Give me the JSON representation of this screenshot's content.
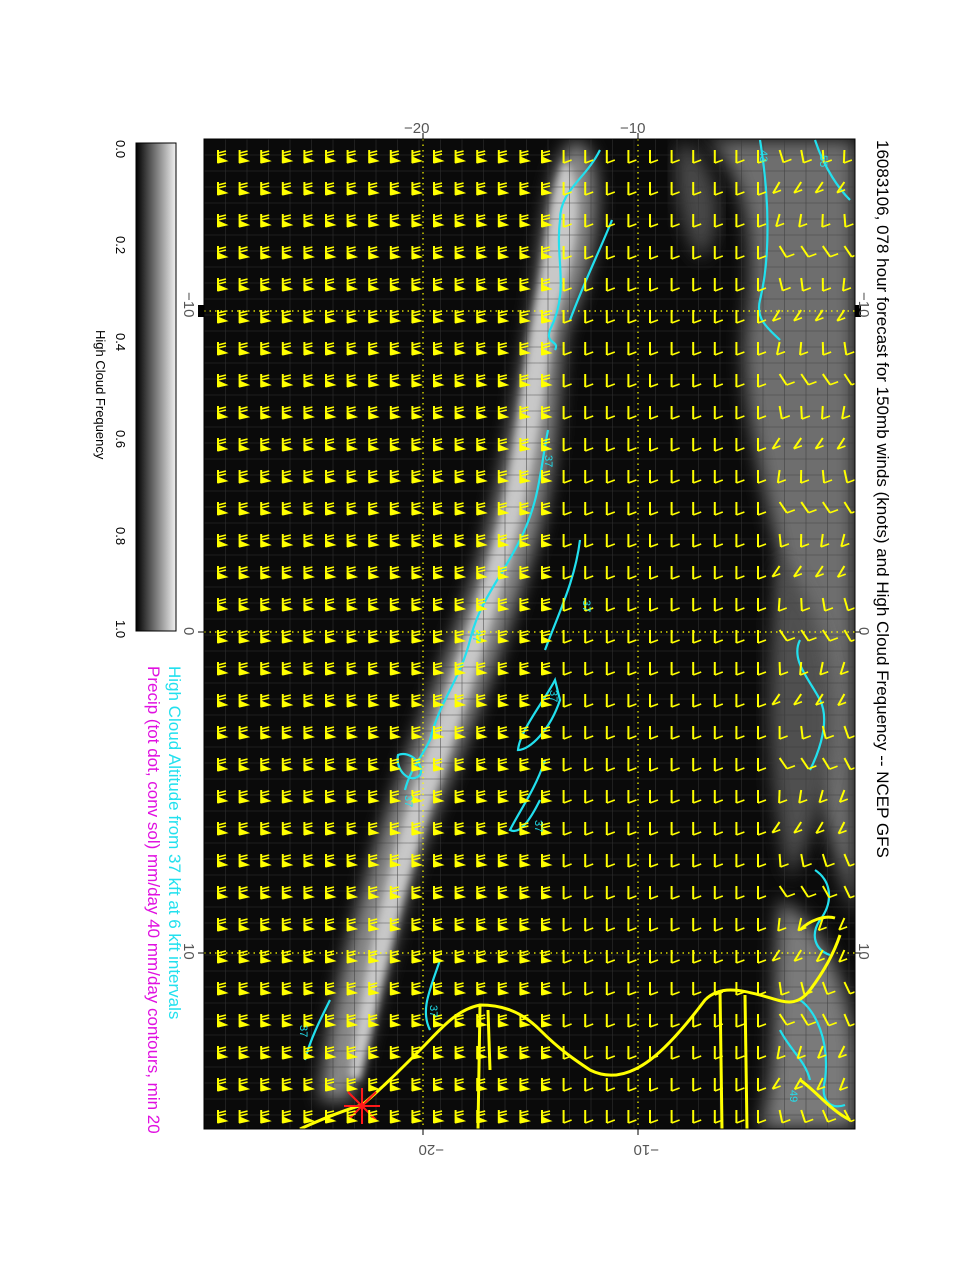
{
  "title": "16083106, 078 hour forecast for 150mb winds (knots) and High Cloud Frequency -- NCEP GFS",
  "caption_line1": "High Cloud Altitude from 37 kft at 6 kft intervals",
  "caption_line2": "Precip (tot dot, conv sol) mm/day 40 mm/day contours, min 20",
  "colorbar": {
    "label": "High Cloud Frequency",
    "ticks": [
      "0.0",
      "0.2",
      "0.4",
      "0.6",
      "0.8",
      "1.0"
    ]
  },
  "axes": {
    "top_ticks": [
      "−20",
      "−10"
    ],
    "bottom_ticks": [
      "−20",
      "−10"
    ],
    "left_ticks": [
      "−10",
      "0",
      "10"
    ],
    "right_ticks": [
      "−10",
      "0",
      "10"
    ]
  },
  "contour_labels": [
    "37",
    "37",
    "37",
    "37",
    "37",
    "37",
    "37",
    "37",
    "43",
    "55",
    "49"
  ],
  "colors": {
    "wind_barbs": "#ffff00",
    "altitude_contours": "#22e0ee",
    "coastline": "#ffff00",
    "precip": "#e010e0",
    "background": "#0a0a0a"
  }
}
